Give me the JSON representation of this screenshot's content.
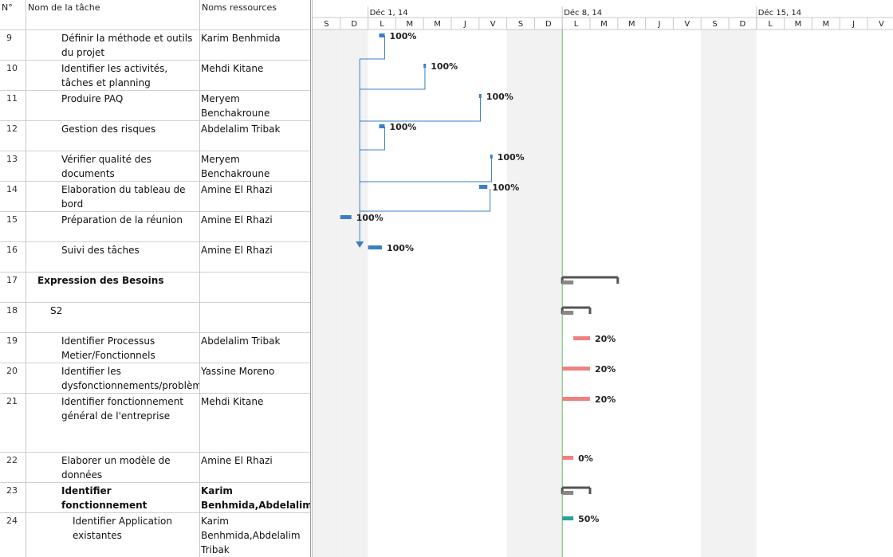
{
  "table": {
    "headers": {
      "id": "N°",
      "name": "Nom de la tâche",
      "resources": "Noms ressources"
    },
    "rows": [
      {
        "id": "9",
        "name": "Définir la méthode et outils du projet",
        "resources": "Karim Benhmida",
        "level": 4,
        "bold": false
      },
      {
        "id": "10",
        "name": "Identifier les activités, tâches et planning",
        "resources": "Mehdi Kitane",
        "level": 4,
        "bold": false
      },
      {
        "id": "11",
        "name": "Produire PAQ",
        "resources": "Meryem Benchakroune",
        "level": 4,
        "bold": false
      },
      {
        "id": "12",
        "name": "Gestion des risques",
        "resources": "Abdelalim Tribak",
        "level": 4,
        "bold": false
      },
      {
        "id": "13",
        "name": "Vérifier qualité des documents",
        "resources": "Meryem Benchakroune",
        "level": 4,
        "bold": false
      },
      {
        "id": "14",
        "name": "Elaboration du tableau de bord",
        "resources": "Amine El Rhazi",
        "level": 4,
        "bold": false
      },
      {
        "id": "15",
        "name": "Préparation de la réunion",
        "resources": "Amine El Rhazi",
        "level": 4,
        "bold": false
      },
      {
        "id": "16",
        "name": "Suivi des tâches",
        "resources": "Amine El Rhazi",
        "level": 4,
        "bold": false
      },
      {
        "id": "17",
        "name": "Expression des Besoins",
        "resources": "",
        "level": 1,
        "bold": true
      },
      {
        "id": "18",
        "name": "S2",
        "resources": "",
        "level": 2,
        "bold": false
      },
      {
        "id": "19",
        "name": "Identifier Processus Metier/Fonctionnels",
        "resources": "Abdelalim Tribak",
        "level": 4,
        "bold": false
      },
      {
        "id": "20",
        "name": "Identifier les dysfonctionnements/problèmes",
        "resources": "Yassine Moreno",
        "level": 4,
        "bold": false
      },
      {
        "id": "21",
        "name": "Identifier fonctionnement général de l'entreprise",
        "resources": "Mehdi Kitane",
        "level": 4,
        "bold": false
      },
      {
        "id": "22",
        "name": "Elaborer un modèle de données",
        "resources": "Amine El Rhazi",
        "level": 4,
        "bold": false
      },
      {
        "id": "23",
        "name": "Identifier fonctionnement informatique",
        "resources": "Karim Benhmida,Abdelalim",
        "level": 4,
        "bold": true
      },
      {
        "id": "24",
        "name": "Identifier Application existantes",
        "resources": "Karim Benhmida,Abdelalim Tribak",
        "level": 5,
        "bold": false
      }
    ]
  },
  "timescale": {
    "weeks": [
      "Déc 1, 14",
      "Déc 8, 14",
      "Déc 15, 14"
    ],
    "days": [
      "S",
      "D",
      "L",
      "M",
      "M",
      "J",
      "V",
      "S",
      "D",
      "L",
      "M",
      "M",
      "J",
      "V",
      "S",
      "D",
      "L",
      "M",
      "M",
      "J",
      "V"
    ]
  },
  "gantt": {
    "colors": {
      "completed": "#3a7fc4",
      "critical": "#f08080",
      "summary": "#555555",
      "progress_summary": "#888888",
      "teal": "#2aa198",
      "link": "#3a7fc4",
      "weekend": "#f2f2f2",
      "today": "#66bb66"
    },
    "today_day_index": 9.0,
    "bars": [
      {
        "row": 0,
        "start": 2.4,
        "end": 2.6,
        "pct": "100%",
        "type": "completed"
      },
      {
        "row": 1,
        "start": 4.0,
        "end": 4.05,
        "pct": "100%",
        "type": "completed"
      },
      {
        "row": 2,
        "start": 6.0,
        "end": 6.05,
        "pct": "100%",
        "type": "completed"
      },
      {
        "row": 3,
        "start": 2.4,
        "end": 2.6,
        "pct": "100%",
        "type": "completed"
      },
      {
        "row": 4,
        "start": 6.4,
        "end": 6.45,
        "pct": "100%",
        "type": "completed"
      },
      {
        "row": 5,
        "start": 6.0,
        "end": 6.3,
        "pct": "100%",
        "type": "completed"
      },
      {
        "row": 6,
        "start": 1.0,
        "end": 1.4,
        "pct": "100%",
        "type": "completed"
      },
      {
        "row": 7,
        "start": 2.0,
        "end": 2.5,
        "pct": "100%",
        "type": "completed"
      },
      {
        "row": 8,
        "start": 9.0,
        "end": 11.0,
        "pct": "",
        "type": "summary"
      },
      {
        "row": 9,
        "start": 9.0,
        "end": 10.0,
        "pct": "",
        "type": "summary"
      },
      {
        "row": 10,
        "start": 9.4,
        "end": 10.0,
        "pct": "20%",
        "type": "critical"
      },
      {
        "row": 11,
        "start": 9.0,
        "end": 10.0,
        "pct": "20%",
        "type": "critical"
      },
      {
        "row": 12,
        "start": 9.0,
        "end": 10.0,
        "pct": "20%",
        "type": "critical"
      },
      {
        "row": 13,
        "start": 9.0,
        "end": 9.4,
        "pct": "0%",
        "type": "critical"
      },
      {
        "row": 14,
        "start": 9.0,
        "end": 10.0,
        "pct": "",
        "type": "summary"
      },
      {
        "row": 15,
        "start": 9.0,
        "end": 9.4,
        "pct": "50%",
        "type": "teal"
      }
    ]
  }
}
